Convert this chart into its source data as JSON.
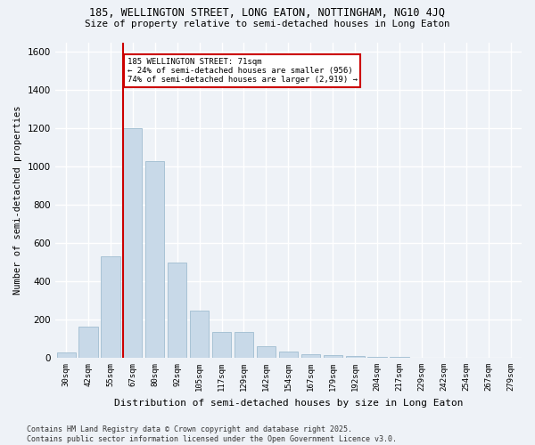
{
  "title1": "185, WELLINGTON STREET, LONG EATON, NOTTINGHAM, NG10 4JQ",
  "title2": "Size of property relative to semi-detached houses in Long Eaton",
  "xlabel": "Distribution of semi-detached houses by size in Long Eaton",
  "ylabel": "Number of semi-detached properties",
  "categories": [
    "30sqm",
    "42sqm",
    "55sqm",
    "67sqm",
    "80sqm",
    "92sqm",
    "105sqm",
    "117sqm",
    "129sqm",
    "142sqm",
    "154sqm",
    "167sqm",
    "179sqm",
    "192sqm",
    "204sqm",
    "217sqm",
    "229sqm",
    "242sqm",
    "254sqm",
    "267sqm",
    "279sqm"
  ],
  "values": [
    30,
    165,
    530,
    1200,
    1030,
    500,
    245,
    135,
    135,
    60,
    35,
    20,
    15,
    8,
    5,
    3,
    2,
    2,
    1,
    1,
    1
  ],
  "bar_color": "#c8d9e8",
  "bar_edge_color": "#a0bdd0",
  "annotation_line1": "185 WELLINGTON STREET: 71sqm",
  "annotation_line2": "← 24% of semi-detached houses are smaller (956)",
  "annotation_line3": "74% of semi-detached houses are larger (2,919) →",
  "vline_color": "#cc0000",
  "annotation_box_edge": "#cc0000",
  "background_color": "#eef2f7",
  "grid_color": "#ffffff",
  "ylim": [
    0,
    1650
  ],
  "yticks": [
    0,
    200,
    400,
    600,
    800,
    1000,
    1200,
    1400,
    1600
  ],
  "footer1": "Contains HM Land Registry data © Crown copyright and database right 2025.",
  "footer2": "Contains public sector information licensed under the Open Government Licence v3.0."
}
